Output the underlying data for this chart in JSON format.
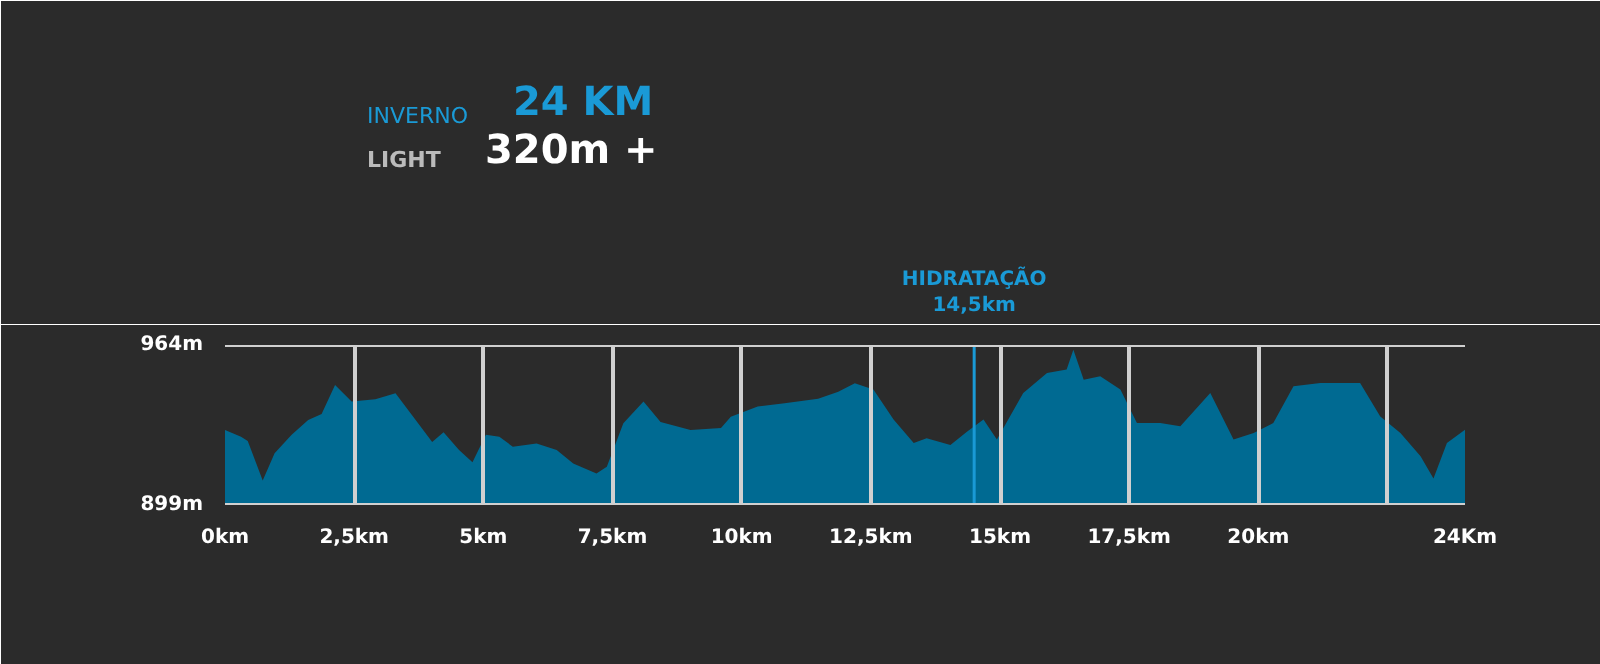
{
  "chart_data": {
    "type": "area",
    "annotations": [
      "INVERNO",
      "24 KM",
      "LIGHT",
      "320m +"
    ],
    "x": [
      0,
      0.31,
      0.44,
      0.73,
      0.96,
      1.29,
      1.61,
      1.87,
      2.13,
      2.45,
      2.91,
      3.3,
      3.69,
      4.01,
      4.23,
      4.53,
      4.79,
      5.05,
      5.31,
      5.57,
      6.03,
      6.42,
      6.74,
      7.19,
      7.39,
      7.71,
      8.1,
      8.43,
      9.01,
      9.6,
      9.79,
      10.31,
      10.83,
      11.48,
      11.87,
      12.19,
      12.55,
      12.94,
      13.33,
      13.58,
      14.04,
      14.36,
      14.68,
      14.94,
      15.45,
      15.91,
      16.29,
      16.42,
      16.62,
      16.94,
      17.33,
      17.65,
      18.1,
      18.49,
      19.07,
      19.52,
      19.91,
      20.29,
      20.68,
      21.2,
      21.97,
      22.36,
      22.75,
      23.14,
      23.39,
      23.65,
      24
    ],
    "series": [
      {
        "color": "#006a92",
        "values": [
          929.5,
          926.7,
          925,
          909,
          920,
          927.5,
          933.5,
          936,
          947.7,
          941,
          942,
          944.4,
          933.5,
          924.6,
          928.6,
          921.3,
          916.4,
          927.5,
          926.7,
          922.7,
          924,
          921.3,
          915.9,
          911.8,
          914.5,
          932.2,
          941,
          932.7,
          929.5,
          930.3,
          934.9,
          939,
          940.3,
          942.2,
          945,
          948.5,
          945.9,
          933.7,
          924.2,
          926.1,
          923.4,
          928.8,
          933.7,
          925.6,
          944.5,
          952.6,
          954,
          962.1,
          949.9,
          951.3,
          945.9,
          932.3,
          932.3,
          931,
          944.5,
          925.6,
          928.2,
          932.3,
          947.2,
          948.6,
          948.6,
          935,
          928.2,
          918.8,
          909.8,
          924.2,
          929.6
        ]
      }
    ],
    "xlim": [
      0,
      24
    ],
    "ylim": [
      899,
      964
    ],
    "xticks": [
      {
        "value": 0,
        "label": "0km"
      },
      {
        "value": 2.5,
        "label": "2,5km"
      },
      {
        "value": 5,
        "label": "5km"
      },
      {
        "value": 7.5,
        "label": "7,5km"
      },
      {
        "value": 10,
        "label": "10km"
      },
      {
        "value": 12.5,
        "label": "12,5km"
      },
      {
        "value": 15,
        "label": "15km"
      },
      {
        "value": 17.5,
        "label": "17,5km"
      },
      {
        "value": 20,
        "label": "20km"
      },
      {
        "value": 22.5,
        "label": null
      },
      {
        "value": 24,
        "label": "24Km"
      }
    ],
    "yticks": [
      {
        "value": 899,
        "label": "899m"
      },
      {
        "value": 964,
        "label": "964m"
      }
    ],
    "ref_lines": [
      {
        "axis": "x",
        "value": 14.5,
        "label": "HIDRATAÇÃO\n14,5km",
        "color": "#1a9ad6"
      }
    ],
    "grid": true
  }
}
